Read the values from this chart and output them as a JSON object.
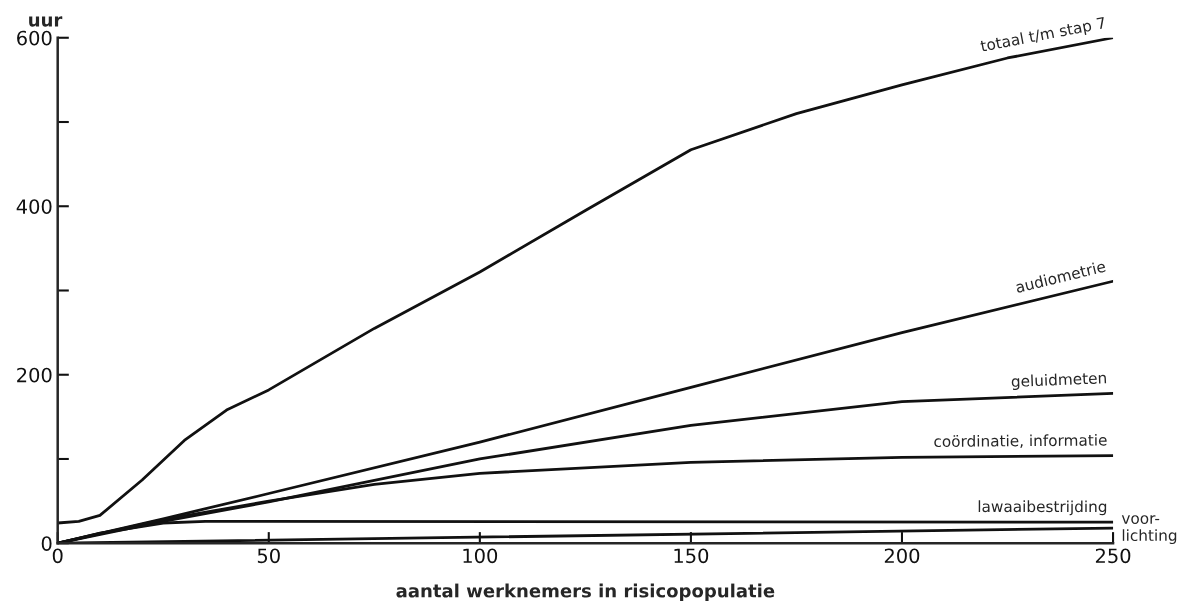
{
  "chart_data": {
    "type": "line",
    "xlabel": "aantal werknemers in risicopopulatie",
    "ylabel": "uur",
    "xlim": [
      0,
      250
    ],
    "ylim": [
      0,
      600
    ],
    "xticks": [
      0,
      50,
      100,
      150,
      200,
      250
    ],
    "yticks": [
      0,
      {
        "value": 100,
        "label": null
      },
      200,
      {
        "value": 300,
        "label": null
      },
      400,
      {
        "value": 500,
        "label": null
      },
      600
    ],
    "grid": false,
    "legend": false,
    "marker": "none",
    "line_style": "solid",
    "series": [
      {
        "name": "totaal t/m stap 7",
        "color": "#111111",
        "x": [
          0,
          5,
          10,
          20,
          30,
          40,
          50,
          75,
          100,
          125,
          150,
          175,
          200,
          225,
          250
        ],
        "values": [
          24,
          26,
          33,
          75,
          122,
          158,
          182,
          255,
          322,
          395,
          467,
          510,
          544,
          576,
          600
        ]
      },
      {
        "name": "audiometrie",
        "color": "#111111",
        "x": [
          0,
          25,
          50,
          100,
          150,
          200,
          250
        ],
        "values": [
          0,
          29,
          59,
          120,
          185,
          250,
          311
        ]
      },
      {
        "name": "geluidmeten",
        "color": "#111111",
        "x": [
          0,
          25,
          50,
          100,
          150,
          200,
          250
        ],
        "values": [
          0,
          26,
          49,
          100,
          140,
          168,
          178
        ]
      },
      {
        "name": "coördinatie, informatie",
        "color": "#111111",
        "x": [
          0,
          25,
          50,
          75,
          100,
          150,
          200,
          250
        ],
        "values": [
          0,
          28,
          50,
          70,
          83,
          96,
          102,
          104
        ]
      },
      {
        "name": "lawaaibestrijding",
        "color": "#111111",
        "x": [
          0,
          10,
          25,
          35,
          250
        ],
        "values": [
          0,
          12,
          24,
          26,
          25
        ]
      },
      {
        "name": "voor-\nlichting",
        "color": "#111111",
        "x": [
          0,
          250
        ],
        "values": [
          0,
          18
        ]
      }
    ]
  }
}
